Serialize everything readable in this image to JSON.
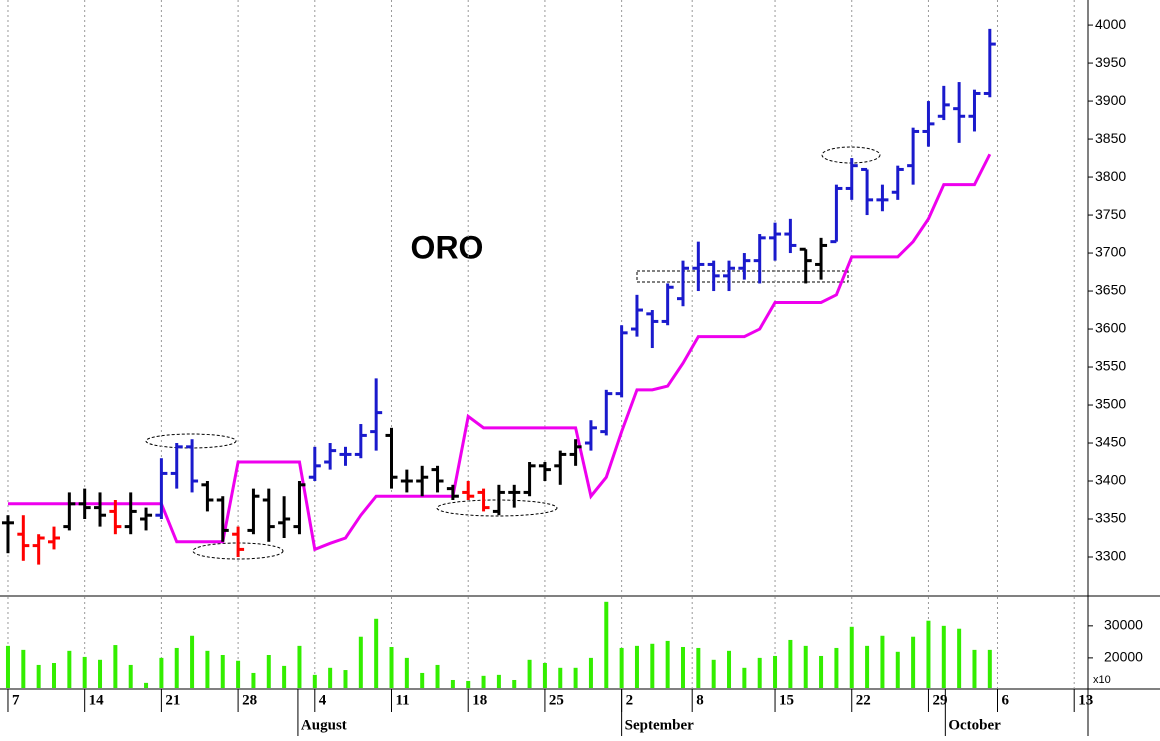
{
  "chart_data": {
    "type": "ohlc",
    "title": "ORO",
    "categories": [
      null,
      null,
      null,
      null,
      null,
      null,
      null,
      null,
      null,
      null,
      null,
      null,
      null,
      null,
      null,
      null,
      null,
      null,
      null,
      null,
      null,
      null,
      null,
      null,
      null,
      null,
      null,
      null,
      null,
      null,
      null,
      null,
      null,
      null,
      null,
      null,
      null,
      null,
      null,
      null,
      null,
      null,
      null,
      null,
      null,
      null,
      null,
      null,
      null,
      null,
      null,
      null,
      null,
      null,
      null,
      null,
      null,
      null,
      null,
      null,
      null,
      null,
      null,
      null,
      null
    ],
    "xlim": [
      -0.52,
      70.4
    ],
    "xticks": [
      {
        "value": 0,
        "label": "7"
      },
      {
        "value": 5,
        "label": "14"
      },
      {
        "value": 10,
        "label": "21"
      },
      {
        "value": 15,
        "label": "28"
      },
      {
        "value": 20,
        "label": "4"
      },
      {
        "value": 25,
        "label": "11"
      },
      {
        "value": 30,
        "label": "18"
      },
      {
        "value": 35,
        "label": "25"
      },
      {
        "value": 40,
        "label": "2"
      },
      {
        "value": 44.6,
        "label": "8"
      },
      {
        "value": 50,
        "label": "15"
      },
      {
        "value": 55,
        "label": "22"
      },
      {
        "value": 60,
        "label": "29"
      },
      {
        "value": 64.5,
        "label": "6"
      },
      {
        "value": 69.5,
        "label": "13"
      }
    ],
    "months": [
      {
        "value": 18.9,
        "label": "August"
      },
      {
        "value": 40,
        "label": "September"
      },
      {
        "value": 61.1,
        "label": "October"
      }
    ],
    "ylim": [
      3250,
      4033
    ],
    "yticks": [
      3300,
      3350,
      3400,
      3450,
      3500,
      3550,
      3600,
      3650,
      3700,
      3750,
      3800,
      3850,
      3900,
      3950,
      4000
    ],
    "grid": true,
    "palette": {
      "k": "#000000",
      "r": "#ff0000",
      "b": "#1a1acc"
    },
    "open": [
      3345,
      3330,
      3315,
      3320,
      3340,
      3370,
      3365,
      3360,
      3340,
      3350,
      3355,
      3410,
      3445,
      3395,
      3375,
      3330,
      3335,
      3375,
      3345,
      3340,
      3405,
      3425,
      3435,
      3435,
      3465,
      3460,
      3400,
      3400,
      3415,
      3390,
      3385,
      3385,
      3360,
      3385,
      3385,
      3420,
      3420,
      3435,
      3450,
      3465,
      3515,
      3600,
      3620,
      3610,
      3640,
      3680,
      3685,
      3670,
      3680,
      3690,
      3720,
      3725,
      3705,
      3685,
      3715,
      3785,
      3810,
      3770,
      3780,
      3815,
      3860,
      3880,
      3890,
      3880,
      3910
    ],
    "high": [
      3355,
      3355,
      3330,
      3340,
      3385,
      3390,
      3385,
      3375,
      3385,
      3365,
      3430,
      3450,
      3455,
      3400,
      3380,
      3340,
      3390,
      3390,
      3380,
      3400,
      3445,
      3450,
      3445,
      3475,
      3535,
      3470,
      3415,
      3420,
      3420,
      3395,
      3400,
      3390,
      3395,
      3395,
      3425,
      3425,
      3440,
      3455,
      3480,
      3520,
      3605,
      3645,
      3625,
      3660,
      3690,
      3715,
      3690,
      3690,
      3700,
      3725,
      3740,
      3745,
      3705,
      3720,
      3790,
      3825,
      3810,
      3790,
      3815,
      3865,
      3900,
      3920,
      3925,
      3915,
      3995
    ],
    "low": [
      3305,
      3295,
      3290,
      3310,
      3335,
      3350,
      3340,
      3330,
      3330,
      3335,
      3350,
      3390,
      3385,
      3360,
      3320,
      3300,
      3330,
      3320,
      3325,
      3330,
      3400,
      3415,
      3420,
      3430,
      3440,
      3390,
      3385,
      3380,
      3385,
      3375,
      3375,
      3360,
      3355,
      3365,
      3380,
      3400,
      3395,
      3420,
      3440,
      3460,
      3510,
      3590,
      3575,
      3605,
      3630,
      3650,
      3650,
      3650,
      3665,
      3660,
      3690,
      3700,
      3660,
      3665,
      3715,
      3770,
      3750,
      3755,
      3770,
      3790,
      3840,
      3875,
      3845,
      3860,
      3905
    ],
    "close": [
      3345,
      3315,
      3325,
      3325,
      3370,
      3365,
      3355,
      3340,
      3360,
      3355,
      3410,
      3445,
      3400,
      3375,
      3335,
      3310,
      3380,
      3340,
      3350,
      3395,
      3420,
      3440,
      3435,
      3460,
      3490,
      3405,
      3400,
      3405,
      3400,
      3380,
      3380,
      3365,
      3385,
      3385,
      3420,
      3415,
      3435,
      3445,
      3470,
      3515,
      3595,
      3625,
      3610,
      3655,
      3680,
      3685,
      3670,
      3680,
      3690,
      3720,
      3725,
      3710,
      3690,
      3710,
      3785,
      3815,
      3770,
      3770,
      3810,
      3860,
      3870,
      3895,
      3880,
      3910,
      3975
    ],
    "bar_colors": [
      "k",
      "r",
      "r",
      "r",
      "k",
      "k",
      "k",
      "r",
      "k",
      "k",
      "b",
      "b",
      "b",
      "k",
      "k",
      "r",
      "k",
      "k",
      "k",
      "k",
      "b",
      "b",
      "b",
      "b",
      "b",
      "k",
      "k",
      "k",
      "k",
      "k",
      "r",
      "r",
      "k",
      "k",
      "k",
      "k",
      "k",
      "k",
      "b",
      "b",
      "b",
      "b",
      "b",
      "b",
      "b",
      "b",
      "b",
      "b",
      "b",
      "b",
      "b",
      "b",
      "k",
      "k",
      "b",
      "b",
      "b",
      "b",
      "b",
      "b",
      "b",
      "b",
      "b",
      "b",
      "b"
    ],
    "stop_line": {
      "color": "#ee00ee",
      "values": [
        3370,
        3370,
        3370,
        3370,
        3370,
        3370,
        3370,
        3370,
        3370,
        3370,
        3370,
        3320,
        3320,
        3320,
        3320,
        3425,
        3425,
        3425,
        3425,
        3425,
        3310,
        3318,
        3325,
        3355,
        3380,
        3380,
        3380,
        3380,
        3380,
        3380,
        3485,
        3470,
        3470,
        3470,
        3470,
        3470,
        3470,
        3470,
        3380,
        3405,
        3465,
        3520,
        3520,
        3525,
        3555,
        3590,
        3590,
        3590,
        3590,
        3600,
        3635,
        3635,
        3635,
        3635,
        3645,
        3695,
        3695,
        3695,
        3695,
        3715,
        3745,
        3790,
        3790,
        3790,
        3830
      ]
    },
    "volume": {
      "color": "#33ee00",
      "values": [
        23750,
        22500,
        17800,
        18400,
        22200,
        20300,
        19400,
        24000,
        17800,
        12200,
        20000,
        23100,
        26900,
        22200,
        20900,
        19100,
        15300,
        20900,
        17500,
        23750,
        14700,
        16900,
        16200,
        26600,
        32200,
        23400,
        20000,
        15300,
        17800,
        13100,
        12800,
        14400,
        14700,
        13100,
        19400,
        18400,
        16900,
        16900,
        20000,
        37500,
        23100,
        23750,
        24400,
        25300,
        23400,
        23100,
        19400,
        22200,
        16900,
        20000,
        20600,
        25600,
        23750,
        20600,
        23100,
        29700,
        23750,
        26900,
        21900,
        26600,
        31600,
        30000,
        29100,
        22500,
        22500
      ],
      "ylim": [
        10600,
        39000
      ],
      "yticks": [
        20000,
        30000
      ],
      "multiplier_label": "x10"
    }
  }
}
